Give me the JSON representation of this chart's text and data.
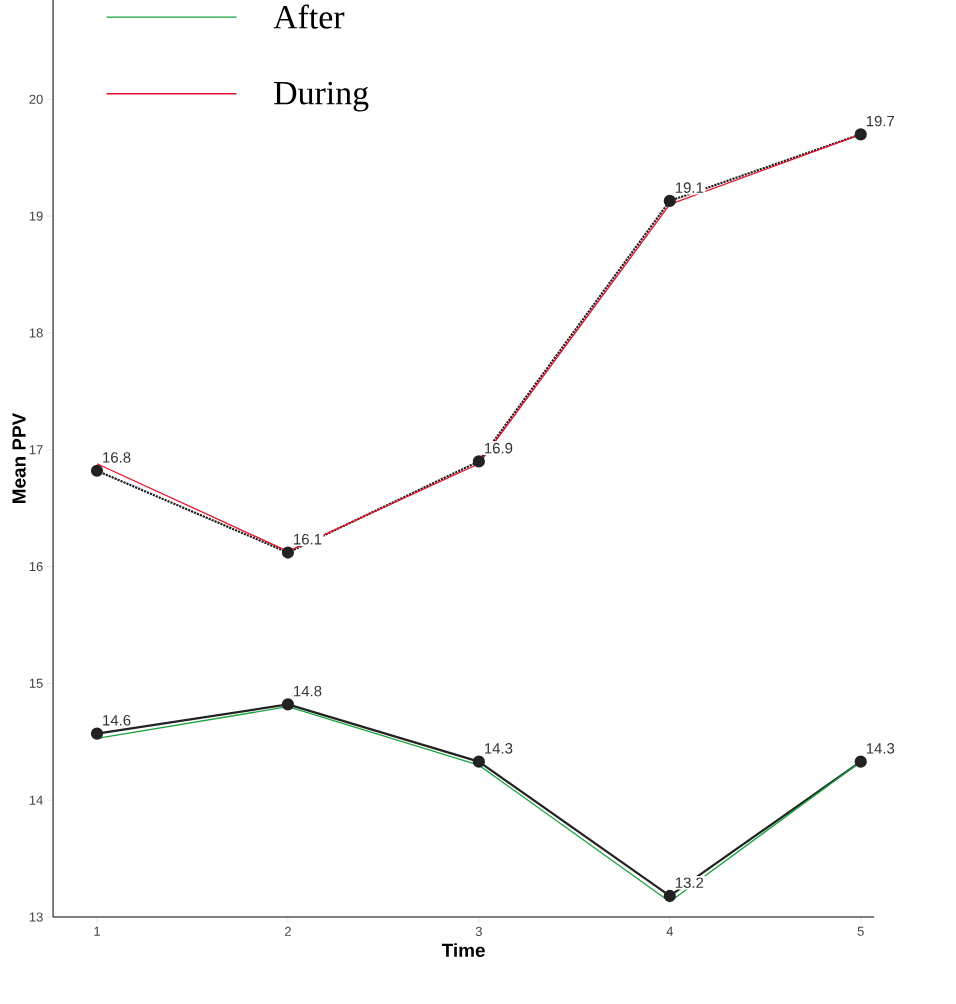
{
  "chart_data": {
    "type": "line",
    "xlabel": "Time",
    "ylabel": "Mean PPV",
    "categories": [
      "1",
      "2",
      "3",
      "4",
      "5"
    ],
    "ylim": [
      13,
      20.85
    ],
    "yticks": [
      13,
      14,
      15,
      16,
      17,
      18,
      19,
      20
    ],
    "legend": "top left",
    "series": [
      {
        "color": "#222222",
        "marker": "circle",
        "line_style": "solid",
        "values": [
          14.57,
          14.82,
          14.33,
          13.18,
          14.33
        ],
        "value_labels": [
          "14.6",
          "14.8",
          "14.3",
          "13.2",
          "14.3"
        ]
      },
      {
        "color": "#222222",
        "marker": "circle",
        "line_style": "dotted",
        "values": [
          16.82,
          16.12,
          16.9,
          19.13,
          19.7
        ],
        "value_labels": [
          "16.8",
          "16.1",
          "16.9",
          "19.1",
          "19.7"
        ]
      },
      {
        "name": "After",
        "color": "#1aa33c",
        "marker": "none",
        "line_style": "solid",
        "values": [
          14.53,
          14.8,
          14.3,
          13.13,
          14.33
        ]
      },
      {
        "name": "During",
        "color": "#e8112d",
        "marker": "none",
        "line_style": "solid",
        "values": [
          16.88,
          16.13,
          16.88,
          19.1,
          19.7
        ]
      }
    ]
  }
}
